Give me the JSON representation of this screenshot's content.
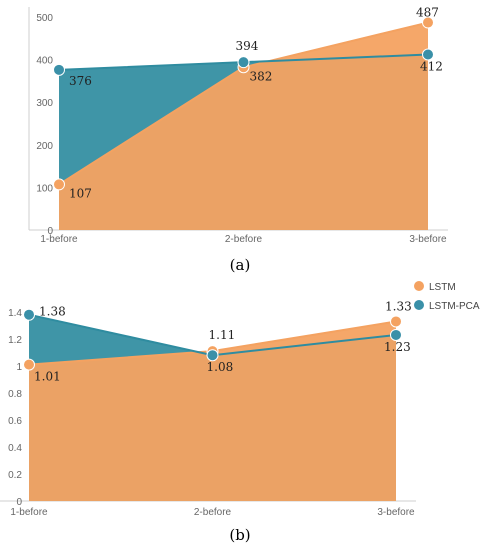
{
  "colors": {
    "lstm": "#f4a261",
    "lstm_pca": "#2f8ca0",
    "lstm_pca_point": "#3a90a8"
  },
  "legend": {
    "position": "top-right",
    "items": [
      "LSTM",
      "LSTM-PCA"
    ]
  },
  "chart_data": [
    {
      "type": "area",
      "caption": "(a)",
      "categories": [
        "1-before",
        "2-before",
        "3-before"
      ],
      "series": [
        {
          "name": "LSTM",
          "values": [
            107,
            382,
            487
          ]
        },
        {
          "name": "LSTM-PCA",
          "values": [
            376,
            394,
            412
          ]
        }
      ],
      "data_labels": {
        "LSTM": [
          "107",
          "382",
          "487"
        ],
        "LSTM-PCA": [
          "376",
          "394",
          "412"
        ]
      },
      "ylim": [
        0,
        500
      ],
      "yticks": [
        "0",
        "100",
        "200",
        "300",
        "400",
        "500"
      ],
      "grid": false
    },
    {
      "type": "area",
      "caption": "(b)",
      "categories": [
        "1-before",
        "2-before",
        "3-before"
      ],
      "series": [
        {
          "name": "LSTM",
          "values": [
            1.01,
            1.11,
            1.33
          ]
        },
        {
          "name": "LSTM-PCA",
          "values": [
            1.38,
            1.08,
            1.23
          ]
        }
      ],
      "data_labels": {
        "LSTM": [
          "1.01",
          "1.11",
          "1.33"
        ],
        "LSTM-PCA": [
          "1.38",
          "1.08",
          "1.23"
        ]
      },
      "ylim": [
        0,
        1.4
      ],
      "yticks": [
        "0",
        "0.2",
        "0.4",
        "0.6",
        "0.8",
        "1",
        "1.2",
        "1.4"
      ],
      "grid": false
    }
  ]
}
